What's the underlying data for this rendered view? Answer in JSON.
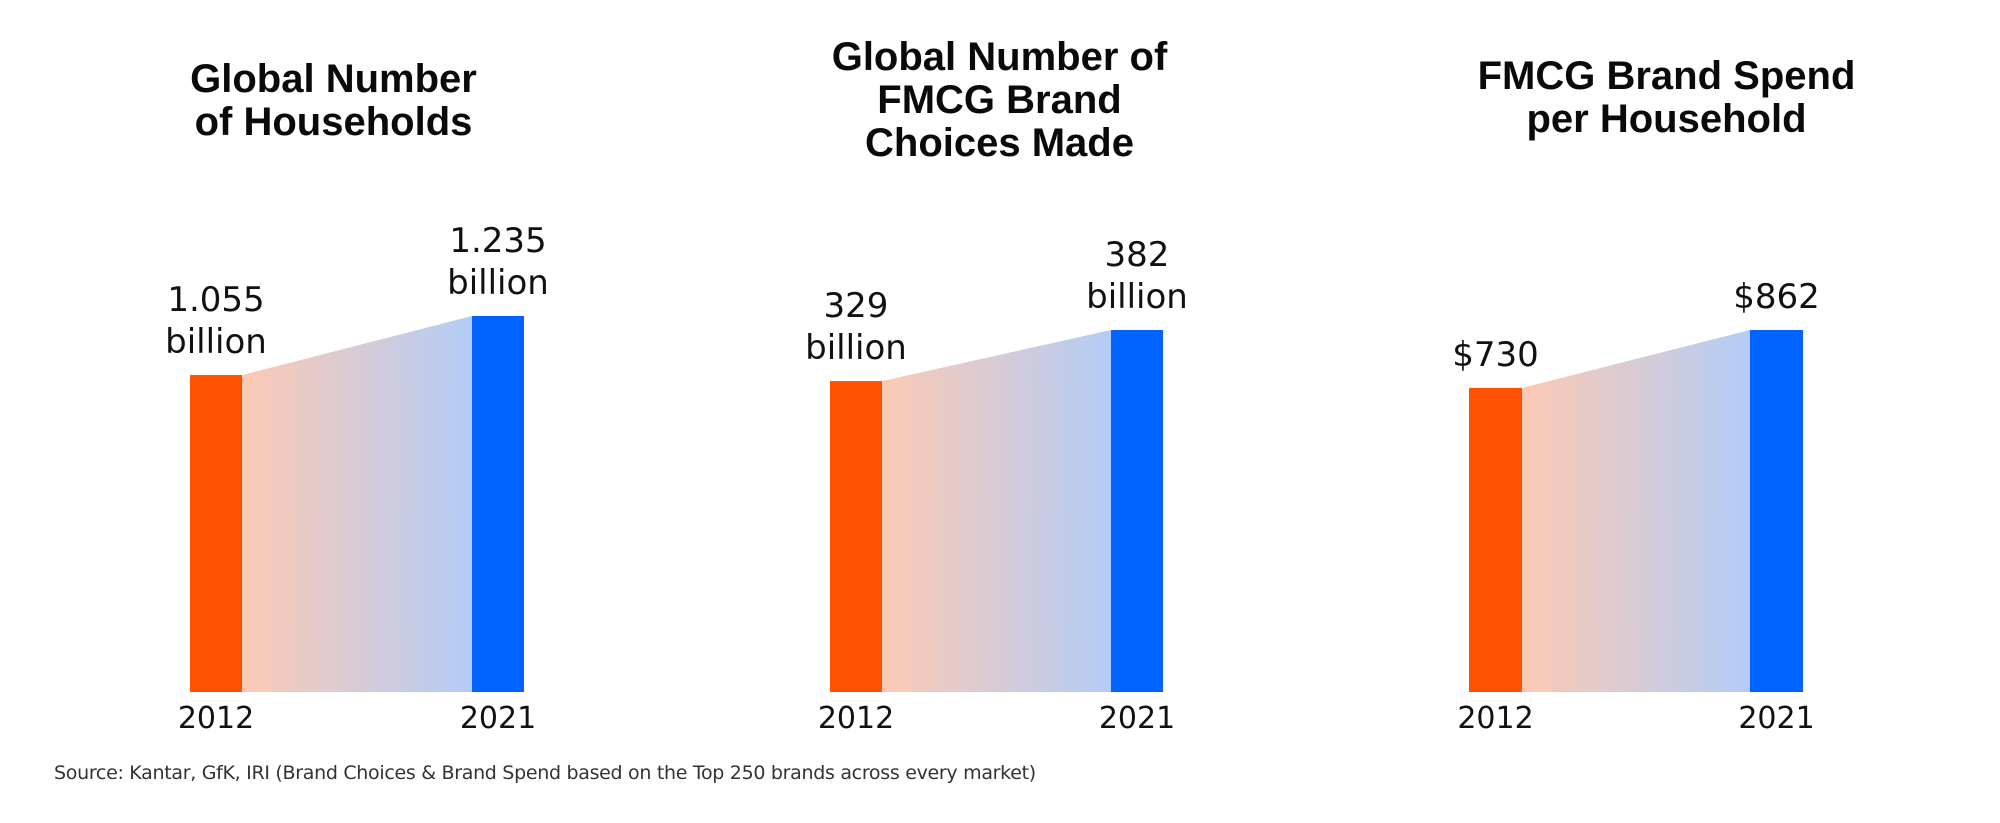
{
  "colors": {
    "bar_start": "#FF5200",
    "bar_end": "#0062FF",
    "connector_start": "#FCCAB4",
    "connector_end": "#B3CCF7",
    "text": "#111111"
  },
  "footnote": "Source: Kantar, GfK, IRI (Brand Choices & Brand Spend based on the Top 250 brands across every market)",
  "chart_data": [
    {
      "type": "bar",
      "title": "Global Number of Households",
      "title_lines": [
        "Global Number",
        "of Households"
      ],
      "categories": [
        "2012",
        "2021"
      ],
      "values": [
        1.055,
        1.235
      ],
      "unit": "billion",
      "data_labels": [
        [
          "1.055",
          "billion"
        ],
        [
          "1.235",
          "billion"
        ]
      ],
      "xlabel": "",
      "ylabel": "",
      "ylim": [
        0,
        1.36
      ],
      "grid": false,
      "legend": "none"
    },
    {
      "type": "bar",
      "title": "Global Number of FMCG Brand Choices Made",
      "title_lines": [
        "Global Number of",
        "FMCG Brand",
        "Choices Made"
      ],
      "categories": [
        "2012",
        "2021"
      ],
      "values": [
        329,
        382
      ],
      "unit": "billion",
      "data_labels": [
        [
          "329",
          "billion"
        ],
        [
          "382",
          "billion"
        ]
      ],
      "xlabel": "",
      "ylabel": "",
      "ylim": [
        0,
        430
      ],
      "grid": false,
      "legend": "none"
    },
    {
      "type": "bar",
      "title": "FMCG Brand Spend per Household",
      "title_lines": [
        "FMCG Brand Spend",
        "per Household"
      ],
      "categories": [
        "2012",
        "2021"
      ],
      "values": [
        730,
        862
      ],
      "unit": "USD",
      "data_labels": [
        [
          "$730"
        ],
        [
          "$862"
        ]
      ],
      "xlabel": "",
      "ylabel": "",
      "ylim": [
        0,
        970
      ],
      "grid": false,
      "legend": "none"
    }
  ]
}
